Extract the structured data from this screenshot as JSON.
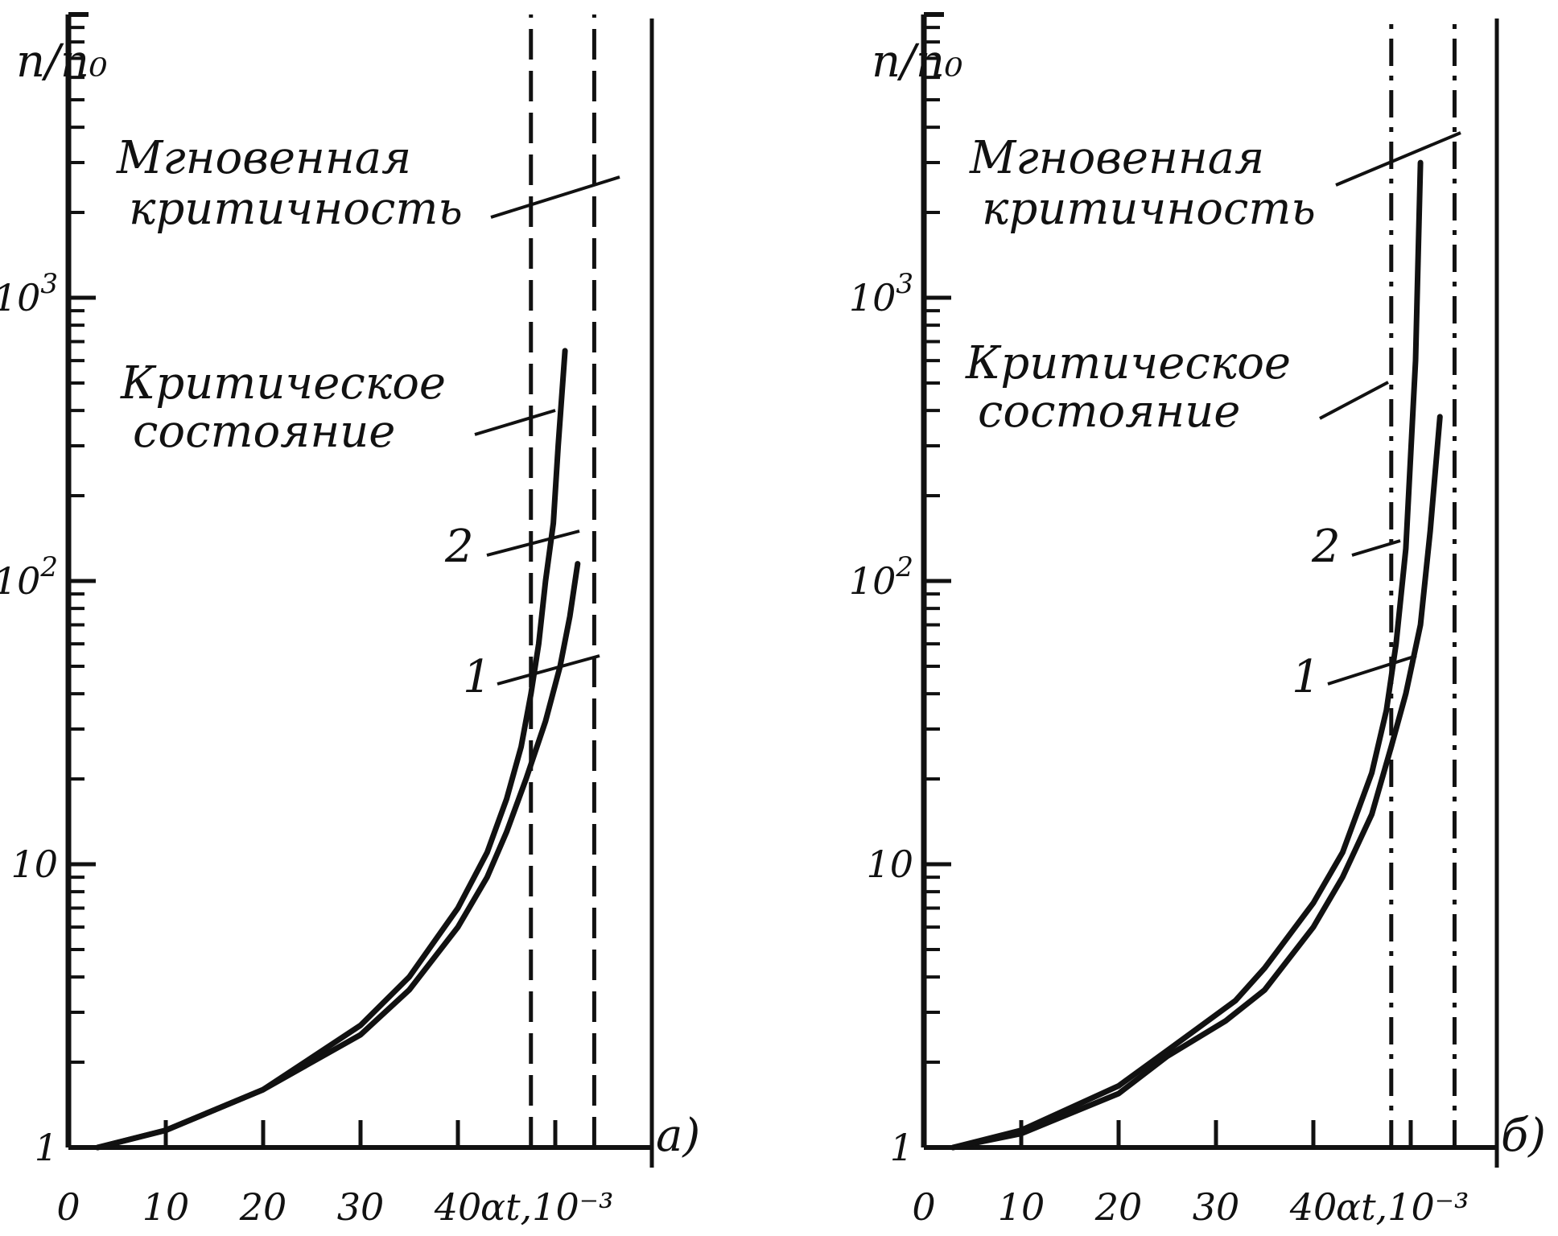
{
  "chart_data": [
    {
      "panel_label": "а)",
      "type": "line",
      "xlabel": "αt,10⁻³",
      "ylabel": "n/n₀",
      "x_scale": "linear",
      "y_scale": "log",
      "xlim": [
        0,
        58
      ],
      "ylim": [
        1,
        10000
      ],
      "x_ticks": [
        0,
        10,
        20,
        30,
        40,
        50
      ],
      "x_tick_labels": [
        "0",
        "10",
        "20",
        "30",
        "40",
        ""
      ],
      "x_axis_unit_label": "αt,10⁻³",
      "y_tick_labels": [
        {
          "value": 1,
          "label": "1"
        },
        {
          "value": 10,
          "label": "10"
        },
        {
          "value": 100,
          "label": "10²"
        },
        {
          "value": 1000,
          "label": "10³"
        }
      ],
      "vlines": [
        {
          "x": 47.5,
          "style": "dashed",
          "label": "Критическое состояние"
        },
        {
          "x": 54,
          "style": "dashed",
          "label": "Мгновенная критичность"
        }
      ],
      "annotations": {
        "critical_state": "Критическое\nсостояние",
        "prompt_criticality": "Мгновенная\nкритичность"
      },
      "series": [
        {
          "name": "1",
          "x": [
            3,
            10,
            20,
            30,
            35,
            40,
            43,
            45,
            47,
            49,
            50.5,
            51.5,
            52.3
          ],
          "y": [
            1,
            1.15,
            1.6,
            2.5,
            3.6,
            6,
            9,
            13,
            20,
            32,
            50,
            75,
            115
          ]
        },
        {
          "name": "2",
          "x": [
            3,
            10,
            20,
            30,
            35,
            40,
            43,
            45,
            46.5,
            47.5,
            48.3,
            49,
            49.8,
            50.3,
            51
          ],
          "y": [
            1,
            1.15,
            1.6,
            2.7,
            4,
            7,
            11,
            17,
            26,
            40,
            60,
            100,
            160,
            300,
            650
          ]
        }
      ]
    },
    {
      "panel_label": "б)",
      "type": "line",
      "xlabel": "αt,10⁻³",
      "ylabel": "n/n₀",
      "x_scale": "linear",
      "y_scale": "log",
      "xlim": [
        0,
        58
      ],
      "ylim": [
        1,
        10000
      ],
      "x_ticks": [
        0,
        10,
        20,
        30,
        40,
        50
      ],
      "x_tick_labels": [
        "0",
        "10",
        "20",
        "30",
        "40",
        ""
      ],
      "x_axis_unit_label": "αt,10⁻³",
      "y_tick_labels": [
        {
          "value": 1,
          "label": "1"
        },
        {
          "value": 10,
          "label": "10"
        },
        {
          "value": 100,
          "label": "10²"
        },
        {
          "value": 1000,
          "label": "10³"
        }
      ],
      "vlines": [
        {
          "x": 48,
          "style": "dash-dot",
          "label": "Критическое состояние"
        },
        {
          "x": 54.5,
          "style": "dash-dot",
          "label": "Мгновенная критичность"
        }
      ],
      "annotations": {
        "critical_state": "Критическое\nсостояние",
        "prompt_criticality": "Мгновенная\nкритичность"
      },
      "series": [
        {
          "name": "1",
          "x": [
            3,
            10,
            20,
            25,
            31,
            35,
            40,
            43,
            46,
            48,
            49.5,
            51,
            52,
            53
          ],
          "y": [
            1,
            1.12,
            1.55,
            2.1,
            2.8,
            3.6,
            6,
            9,
            15,
            26,
            40,
            70,
            150,
            380
          ]
        },
        {
          "name": "2",
          "x": [
            3,
            10,
            20,
            25,
            32,
            35,
            40,
            43,
            46,
            47.5,
            48.5,
            49.5,
            50.5,
            51
          ],
          "y": [
            1,
            1.15,
            1.65,
            2.2,
            3.3,
            4.3,
            7.3,
            11,
            21,
            35,
            60,
            130,
            600,
            3000
          ]
        }
      ]
    }
  ]
}
